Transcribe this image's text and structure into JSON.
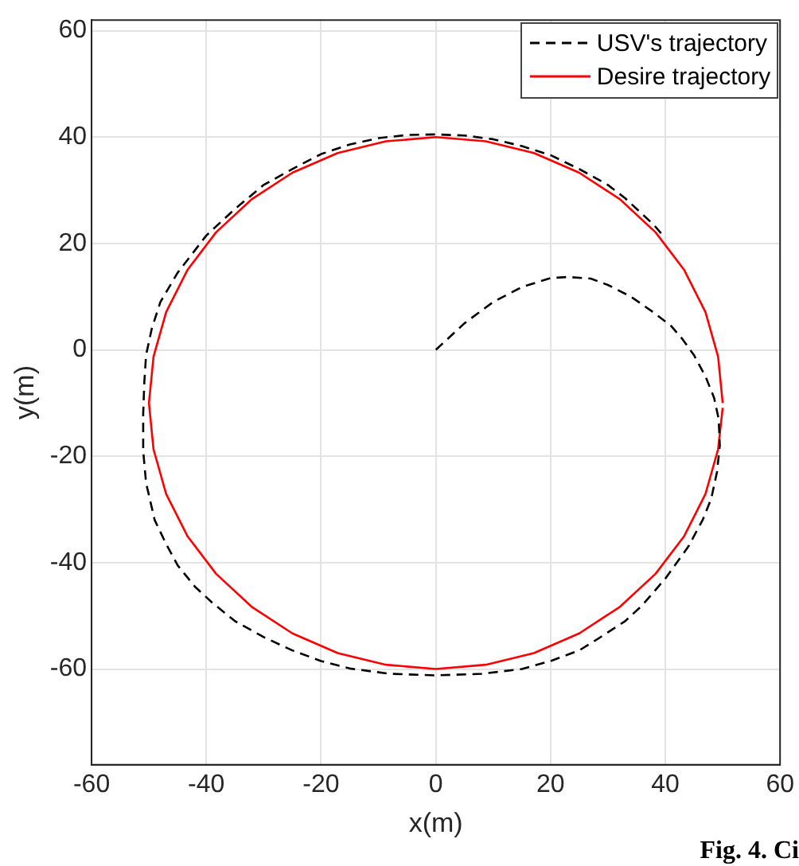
{
  "chart_data": {
    "type": "line",
    "xlabel": "x(m)",
    "ylabel": "y(m)",
    "xlim": [
      -60,
      60
    ],
    "xticks": [
      -60,
      -40,
      -20,
      0,
      20,
      40,
      60
    ],
    "ylim": [
      -78,
      62
    ],
    "yticks": [
      -60,
      -40,
      -20,
      0,
      20,
      40,
      60
    ],
    "grid": true,
    "legend": "top right",
    "marker": "none",
    "annotations": [
      "Fig. 4. Ci"
    ],
    "series": [
      {
        "name": "USV's trajectory",
        "color": "#000000",
        "line_style": "dashed",
        "x": [
          0,
          5,
          10,
          15,
          20,
          23,
          27,
          30,
          34,
          38,
          41,
          43,
          45,
          47,
          48.5,
          49.3,
          49.5,
          49,
          48,
          46.5,
          44,
          40,
          36,
          33,
          28,
          25,
          20,
          15,
          8,
          0,
          -8,
          -15,
          -20,
          -25,
          -30,
          -35,
          -39,
          -42,
          -45,
          -47,
          -49,
          -50.5,
          -51,
          -51,
          -50.8,
          -50.5,
          -49.5,
          -48,
          -45,
          -40,
          -35,
          -30,
          -25,
          -20,
          -15,
          -10,
          -5,
          0,
          5,
          10,
          15,
          20,
          25,
          30,
          33,
          36,
          38,
          40
        ],
        "values": [
          0,
          5,
          9,
          11.8,
          13.5,
          13.7,
          13.4,
          12.2,
          10,
          7,
          4.5,
          2,
          -1,
          -5,
          -9,
          -13,
          -18,
          -23,
          -28,
          -32,
          -37,
          -43,
          -48,
          -51,
          -54.5,
          -56.5,
          -58.5,
          -60,
          -60.9,
          -61.2,
          -60.9,
          -59.9,
          -58.5,
          -56.5,
          -54,
          -51,
          -47.5,
          -44.5,
          -40.5,
          -36.5,
          -32,
          -25,
          -19,
          -12,
          -6,
          -1,
          4,
          9,
          14.5,
          21.5,
          26.5,
          31,
          34,
          36.8,
          38.6,
          39.8,
          40.4,
          40.5,
          40.3,
          39.6,
          38.3,
          36.6,
          34,
          31,
          28.5,
          25.5,
          23.5,
          21
        ]
      },
      {
        "name": "Desire trajectory",
        "color": "#ff0000",
        "line_style": "solid",
        "x": [
          50,
          49.2,
          47,
          43.3,
          38.3,
          32.1,
          25,
          17.1,
          8.7,
          0,
          -8.7,
          -17.1,
          -25,
          -32.1,
          -38.3,
          -43.3,
          -47,
          -49.2,
          -50,
          -49.2,
          -47,
          -43.3,
          -38.3,
          -32.1,
          -25,
          -17.1,
          -8.7,
          0,
          8.7,
          17.1,
          25,
          32.1,
          38.3,
          43.3,
          47,
          49.2,
          50
        ],
        "values": [
          -10,
          -1.3,
          7.1,
          15,
          22.1,
          28.3,
          33.3,
          37,
          39.2,
          40,
          39.2,
          37,
          33.3,
          28.3,
          22.1,
          15,
          7.1,
          -1.3,
          -10,
          -18.7,
          -27.1,
          -35,
          -42.1,
          -48.3,
          -53.3,
          -57,
          -59.2,
          -60,
          -59.2,
          -57,
          -53.3,
          -48.3,
          -42.1,
          -35,
          -27.1,
          -18.7,
          -10.9
        ]
      }
    ]
  }
}
